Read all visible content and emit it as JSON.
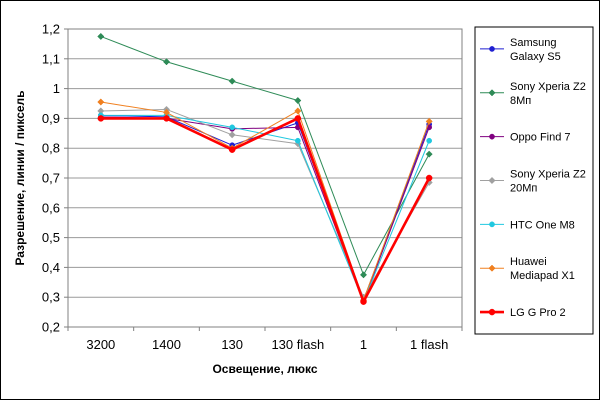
{
  "chart_data": {
    "type": "line",
    "title": "",
    "xlabel": "Освещение, люкс",
    "ylabel": "Разрешение, линии / пиксель",
    "categories": [
      "3200",
      "1400",
      "130",
      "130 flash",
      "1",
      "1 flash"
    ],
    "ylim": [
      0.2,
      1.2
    ],
    "yticks": [
      "0,2",
      "0,3",
      "0,4",
      "0,5",
      "0,6",
      "0,7",
      "0,8",
      "0,9",
      "1",
      "1,1",
      "1,2"
    ],
    "grid": "horizontal",
    "legend_position": "right",
    "series": [
      {
        "name": "Samsung Galaxy S5",
        "legend_lines": [
          "Samsung",
          "Galaxy S5"
        ],
        "color": "#1f1fd1",
        "marker": "circle",
        "values": [
          0.91,
          0.905,
          0.81,
          0.885,
          0.29,
          0.88
        ]
      },
      {
        "name": "Sony Xperia Z2 8Mп",
        "legend_lines": [
          "Sony Xperia Z2",
          "8Mп"
        ],
        "color": "#2e8b57",
        "marker": "diamond",
        "values": [
          1.175,
          1.09,
          1.025,
          0.96,
          0.375,
          0.78
        ]
      },
      {
        "name": "Oppo Find 7",
        "legend_lines": [
          "Oppo Find 7"
        ],
        "color": "#800080",
        "marker": "circle",
        "values": [
          0.905,
          0.9,
          0.865,
          0.87,
          0.285,
          0.87
        ]
      },
      {
        "name": "Sony Xperia Z2 20Mп",
        "legend_lines": [
          "Sony Xperia Z2",
          "20Mп"
        ],
        "color": "#a0a0a0",
        "marker": "diamond",
        "values": [
          0.925,
          0.93,
          0.845,
          0.815,
          0.3,
          0.685
        ]
      },
      {
        "name": "HTC One M8",
        "legend_lines": [
          "HTC One M8"
        ],
        "color": "#20c8e0",
        "marker": "circle",
        "values": [
          0.91,
          0.91,
          0.87,
          0.825,
          0.285,
          0.825
        ]
      },
      {
        "name": "Huawei Mediapad X1",
        "legend_lines": [
          "Huawei",
          "Mediapad X1"
        ],
        "color": "#f08020",
        "marker": "diamond",
        "values": [
          0.955,
          0.92,
          0.8,
          0.925,
          0.29,
          0.89
        ]
      },
      {
        "name": "LG G Pro 2",
        "legend_lines": [
          "LG G Pro 2"
        ],
        "color": "#ff0000",
        "marker": "circle",
        "bold": true,
        "values": [
          0.9,
          0.9,
          0.795,
          0.9,
          0.285,
          0.7
        ]
      }
    ]
  }
}
